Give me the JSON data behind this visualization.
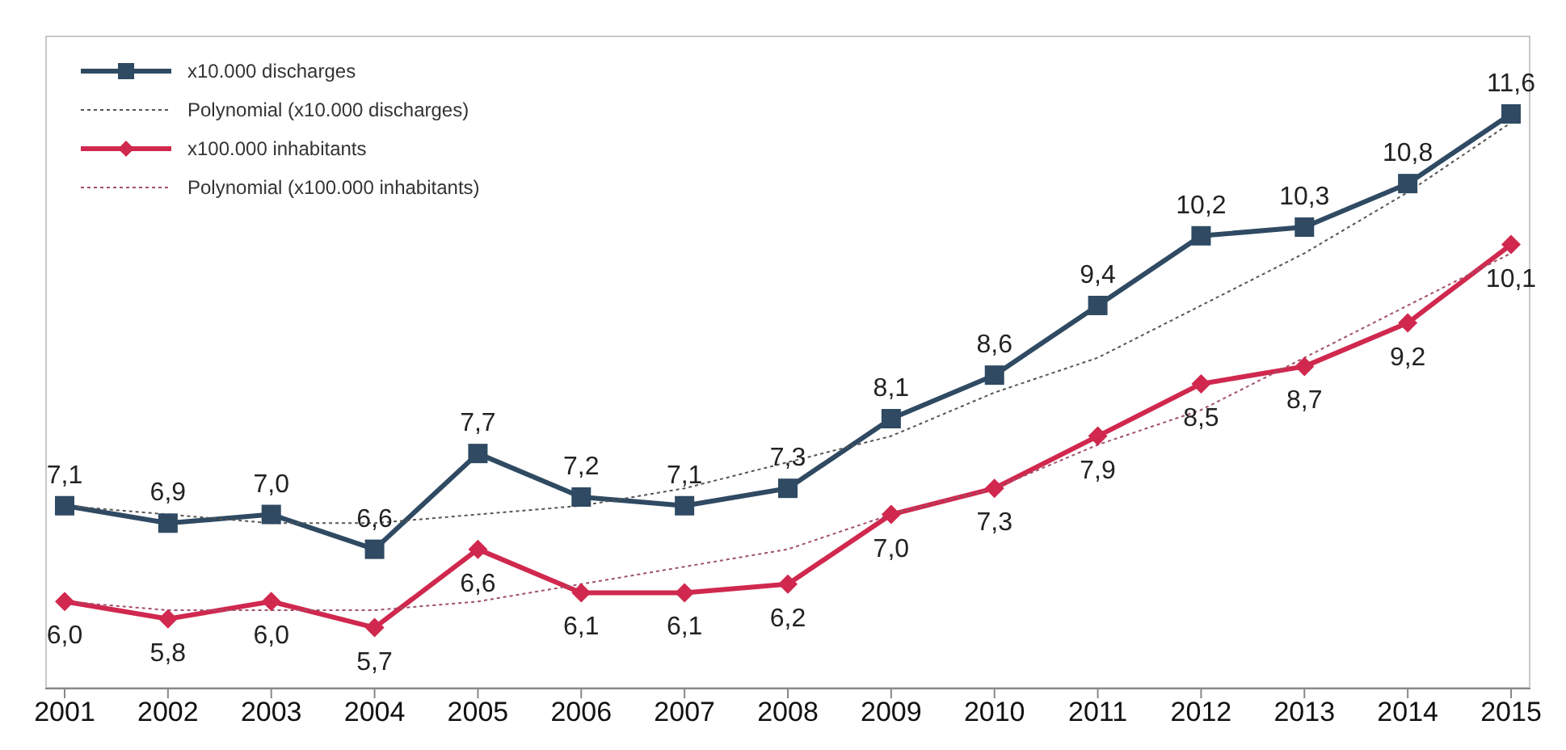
{
  "chart_data": {
    "type": "line",
    "categories": [
      "2001",
      "2002",
      "2003",
      "2004",
      "2005",
      "2006",
      "2007",
      "2008",
      "2009",
      "2010",
      "2011",
      "2012",
      "2013",
      "2014",
      "2015"
    ],
    "ylim": [
      5,
      12.5
    ],
    "tick_labels": "x",
    "grid": false,
    "legend": "top left",
    "line_style": "solid",
    "series": [
      {
        "name": "x10.000 discharges",
        "color": "#2f4a62",
        "marker": "square",
        "values": [
          7.1,
          6.9,
          7.0,
          6.6,
          7.7,
          7.2,
          7.1,
          7.3,
          8.1,
          8.6,
          9.4,
          10.2,
          10.3,
          10.8,
          11.6
        ],
        "value_labels": [
          "7,1",
          "6,9",
          "7,0",
          "6,6",
          "7,7",
          "7,2",
          "7,1",
          "7,3",
          "8,1",
          "8,6",
          "9,4",
          "10,2",
          "10,3",
          "10,8",
          "11,6"
        ]
      },
      {
        "name": "Polynomial (x10.000 discharges)",
        "color": "#555555",
        "marker": "none",
        "line_style": "dotted",
        "values": [
          7.1,
          7.0,
          6.9,
          6.9,
          7.0,
          7.1,
          7.3,
          7.6,
          7.9,
          8.4,
          8.8,
          9.4,
          10.0,
          10.7,
          11.5
        ]
      },
      {
        "name": "x100.000 inhabitants",
        "color": "#d0284e",
        "marker": "diamond",
        "values": [
          6.0,
          5.8,
          6.0,
          5.7,
          6.6,
          6.1,
          6.1,
          6.2,
          7.0,
          7.3,
          7.9,
          8.5,
          8.7,
          9.2,
          10.1
        ],
        "value_labels": [
          "6,0",
          "5,8",
          "6,0",
          "5,7",
          "6,6",
          "6,1",
          "6,1",
          "6,2",
          "7,0",
          "7,3",
          "7,9",
          "8,5",
          "8,7",
          "9,2",
          "10,1"
        ]
      },
      {
        "name": "Polynomial (x100.000 inhabitants)",
        "color": "#a0506a",
        "marker": "none",
        "line_style": "dotted",
        "values": [
          6.0,
          5.9,
          5.9,
          5.9,
          6.0,
          6.2,
          6.4,
          6.6,
          7.0,
          7.3,
          7.8,
          8.2,
          8.8,
          9.4,
          10.0
        ]
      }
    ]
  }
}
